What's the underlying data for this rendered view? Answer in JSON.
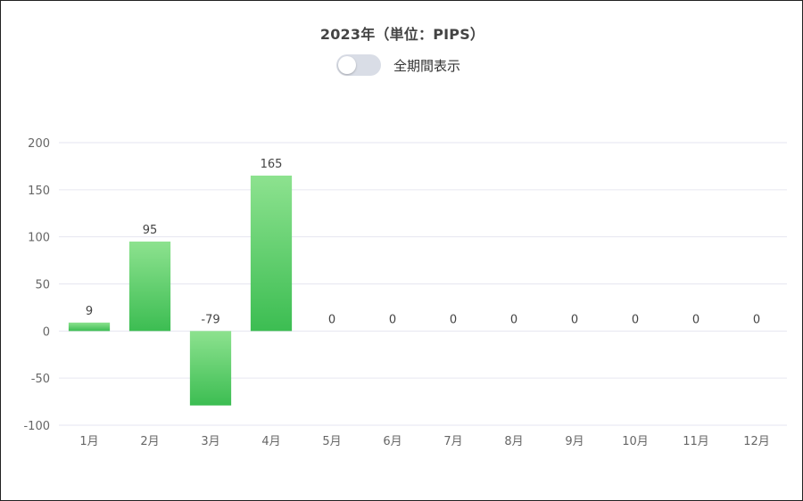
{
  "chart_data": {
    "type": "bar",
    "title": "2023年（単位：PIPS）",
    "categories": [
      "1月",
      "2月",
      "3月",
      "4月",
      "5月",
      "6月",
      "7月",
      "8月",
      "9月",
      "10月",
      "11月",
      "12月"
    ],
    "values": [
      9,
      95,
      -79,
      165,
      0,
      0,
      0,
      0,
      0,
      0,
      0,
      0
    ],
    "data_labels": [
      "9",
      "95",
      "-79",
      "165",
      "0",
      "0",
      "0",
      "0",
      "0",
      "0",
      "0",
      "0"
    ],
    "yticks": [
      200,
      150,
      100,
      50,
      0,
      -50,
      -100
    ],
    "ylim": [
      -100,
      200
    ],
    "grid": true,
    "bar_color_top": "#8de28f",
    "bar_color_bottom": "#3cbd52",
    "gridline_color": "#e6e6f0"
  },
  "toggle": {
    "label": "全期間表示",
    "on": false
  }
}
